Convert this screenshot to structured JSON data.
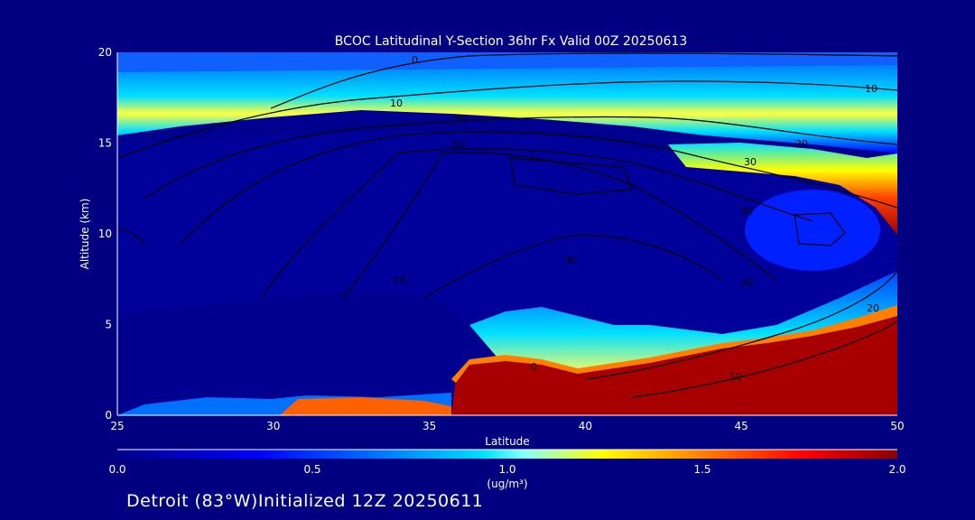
{
  "chart_data": {
    "type": "heatmap",
    "title": "BCOC Latitudinal Y-Section 36hr  Fx Valid 00Z 20250613",
    "xlabel": "Latitude",
    "ylabel": "Altitude (km)",
    "xlim": [
      25,
      50
    ],
    "ylim": [
      0,
      20
    ],
    "x_ticks": [
      "25",
      "30",
      "35",
      "40",
      "45",
      "50"
    ],
    "y_ticks": [
      "0",
      "5",
      "10",
      "15",
      "20"
    ],
    "colorbar": {
      "min": 0.0,
      "max": 2.0,
      "ticks": [
        "0.0",
        "0.5",
        "1.0",
        "1.5",
        "2.0"
      ],
      "unit_label": "(ug/m³)"
    },
    "colorscale": [
      "#00008b",
      "#0000ff",
      "#0080ff",
      "#00e0ff",
      "#80ffff",
      "#ffff00",
      "#ff8000",
      "#ff0000",
      "#8b0000"
    ],
    "field_features": [
      {
        "feature": "near-surface plume",
        "lat_range": [
          37,
          50
        ],
        "alt_range": [
          0,
          3
        ],
        "value": 2.0
      },
      {
        "feature": "tropopause layer",
        "lat_range": [
          25,
          50
        ],
        "alt_range": [
          15,
          18
        ],
        "value": 1.2
      },
      {
        "feature": "northern upper maximum",
        "lat_range": [
          44,
          50
        ],
        "alt_range": [
          13.5,
          15
        ],
        "value": 2.0
      },
      {
        "feature": "convective lofting",
        "lat_range": [
          37,
          41
        ],
        "alt_range": [
          3,
          5.5
        ],
        "value": 1.0
      }
    ],
    "contour_levels": [
      0,
      10,
      20,
      30
    ]
  },
  "footer": {
    "caption": "Detroit (83°W)Initialized 12Z 20250611"
  }
}
